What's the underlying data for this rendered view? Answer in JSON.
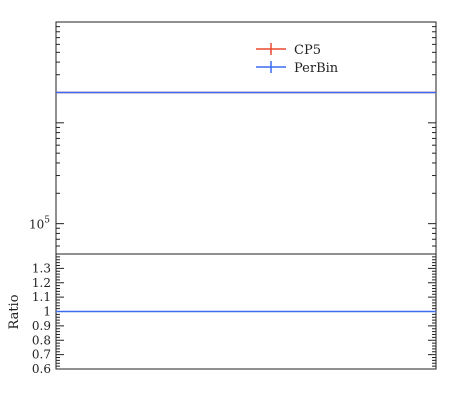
{
  "chart_data": [
    {
      "type": "line",
      "panel": "main",
      "yscale": "log",
      "ylim": [
        50000,
        10000000
      ],
      "yticks": [
        {
          "value": 100000,
          "label": "10",
          "exp": "5"
        }
      ],
      "legend": {
        "placement": "top-right"
      },
      "series": [
        {
          "name": "CP5",
          "color": "#e8492f",
          "x": [
            0,
            1
          ],
          "y": [
            2000000,
            2000000
          ]
        },
        {
          "name": "PerBin",
          "color": "#3b6cf0",
          "x": [
            0,
            1
          ],
          "y": [
            2000000,
            2000000
          ]
        }
      ]
    },
    {
      "type": "line",
      "panel": "ratio",
      "ylabel": "Ratio",
      "ylim": [
        0.6,
        1.4
      ],
      "yticks": [
        {
          "value": 0.6,
          "label": "0.6"
        },
        {
          "value": 0.7,
          "label": "0.7"
        },
        {
          "value": 0.8,
          "label": "0.8"
        },
        {
          "value": 0.9,
          "label": "0.9"
        },
        {
          "value": 1.0,
          "label": "1"
        },
        {
          "value": 1.1,
          "label": "1.1"
        },
        {
          "value": 1.2,
          "label": "1.2"
        },
        {
          "value": 1.3,
          "label": "1.3"
        }
      ],
      "series": [
        {
          "name": "PerBin",
          "color": "#3b6cf0",
          "x": [
            0,
            1
          ],
          "y": [
            1.0,
            1.0
          ]
        }
      ]
    }
  ]
}
